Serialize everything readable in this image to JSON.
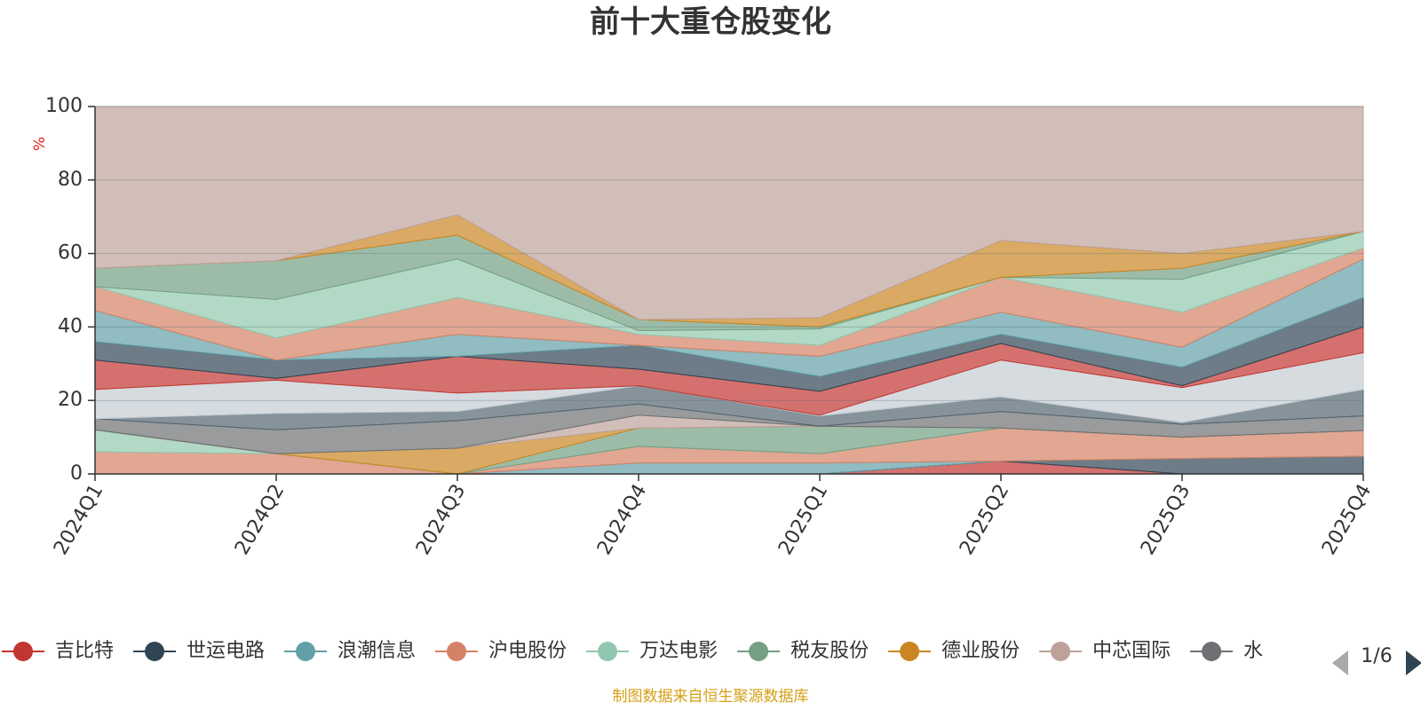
{
  "chart_data": {
    "type": "area",
    "stacked": true,
    "title": "前十大重仓股变化",
    "y_unit": "%",
    "ylim": [
      0,
      100
    ],
    "y_ticks": [
      0,
      20,
      40,
      60,
      80,
      100
    ],
    "grid": true,
    "categories": [
      "2024Q1",
      "2024Q2",
      "2024Q3",
      "2024Q4",
      "2025Q1",
      "2025Q2",
      "2025Q3",
      "2025Q4"
    ],
    "series": [
      {
        "name": "吉比特",
        "color": "#c23531",
        "values": [
          0,
          0,
          0,
          0,
          0,
          3.5,
          0,
          0
        ]
      },
      {
        "name": "世运电路",
        "color": "#2f4554",
        "values": [
          0,
          0,
          0,
          0,
          0,
          0,
          4.2,
          4.8
        ]
      },
      {
        "name": "浪潮信息",
        "color": "#61a0a8",
        "values": [
          0,
          0,
          0,
          3.0,
          3.0,
          0,
          0,
          0
        ]
      },
      {
        "name": "沪电股份",
        "color": "#d48265",
        "values": [
          6.0,
          5.5,
          0,
          4.5,
          2.5,
          9.0,
          5.8,
          7.0
        ]
      },
      {
        "name": "万达电影",
        "color": "#91c7ae",
        "values": [
          6.0,
          0,
          0,
          0,
          0,
          0,
          0,
          0
        ]
      },
      {
        "name": "税友股份",
        "color": "#749f83",
        "values": [
          0,
          0,
          0,
          5.0,
          7.5,
          0,
          0,
          0
        ]
      },
      {
        "name": "德业股份",
        "color": "#ca8622",
        "values": [
          0,
          0,
          7.0,
          0,
          0,
          0,
          0,
          0
        ]
      },
      {
        "name": "中芯国际",
        "color": "#bda29a",
        "values": [
          0,
          0,
          0,
          3.5,
          0,
          0,
          0,
          0
        ]
      }
    ],
    "upper_layers_color_sequence": [
      "#6e7074",
      "#546570",
      "#c4ccd3",
      "#c23531",
      "#2f4554",
      "#61a0a8",
      "#d48265",
      "#91c7ae",
      "#749f83",
      "#ca8622",
      "#bda29a"
    ],
    "upper_layer_tops": [
      [
        15.0,
        12.0,
        14.5,
        19.0,
        12.5,
        17.0,
        13.5,
        15.8
      ],
      [
        15.0,
        16.5,
        17.0,
        24.0,
        15.8,
        21.0,
        14.0,
        23.0
      ],
      [
        23.0,
        25.5,
        22.0,
        24.0,
        16.0,
        31.0,
        23.5,
        33.0
      ],
      [
        31.0,
        26.0,
        32.0,
        28.5,
        22.5,
        35.5,
        24.0,
        40.0
      ],
      [
        36.0,
        31.0,
        32.0,
        35.0,
        26.5,
        38.0,
        29.0,
        48.0
      ],
      [
        44.5,
        31.0,
        38.0,
        35.0,
        32.0,
        44.0,
        34.5,
        58.5
      ],
      [
        51.0,
        37.0,
        48.0,
        38.0,
        35.0,
        53.5,
        44.0,
        61.5
      ],
      [
        51.0,
        47.5,
        58.5,
        39.0,
        39.5,
        53.5,
        53.0,
        66.0
      ],
      [
        56.0,
        58.0,
        65.0,
        42.0,
        40.0,
        53.5,
        56.0,
        66.0
      ],
      [
        56.0,
        58.0,
        70.5,
        42.0,
        42.5,
        63.5,
        60.0,
        66.0
      ],
      [
        100,
        100,
        100,
        100,
        100,
        100,
        100,
        100
      ]
    ]
  },
  "legend": {
    "items": [
      "吉比特",
      "世运电路",
      "浪潮信息",
      "沪电股份",
      "万达电影",
      "税友股份",
      "德业股份",
      "中芯国际",
      "水"
    ],
    "colors": [
      "#c23531",
      "#2f4554",
      "#61a0a8",
      "#d48265",
      "#91c7ae",
      "#749f83",
      "#ca8622",
      "#bda29a",
      "#6e7074"
    ],
    "page": "1/6"
  },
  "source": "制图数据来自恒生聚源数据库"
}
